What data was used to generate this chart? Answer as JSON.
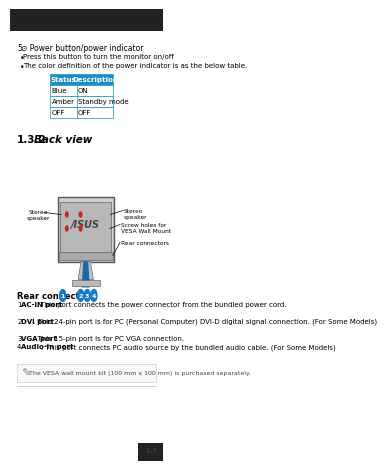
{
  "bg_color": "#ffffff",
  "title_text": "Power button/power indicator",
  "bullet1": "Press this button to turn the monitor on/off",
  "bullet2": "The color definition of the power indicator is as the below table.",
  "table_header": [
    "Status",
    "Description"
  ],
  "table_rows": [
    [
      "Blue",
      "ON"
    ],
    [
      "Amber",
      "Standby mode"
    ],
    [
      "OFF",
      "OFF"
    ]
  ],
  "table_header_bg": "#1a8fc1",
  "table_header_fg": "#ffffff",
  "table_border": "#1a8fc1",
  "section_num": "1.3.2",
  "section_title": "Back view",
  "rear_connectors_title": "Rear connectors",
  "items": [
    [
      "AC-IN port",
      ". This port connects the power connector from the bundled power cord."
    ],
    [
      "DVI port",
      ". This 24-pin port is for PC (Personal Computer) DVI-D digital signal connection. (For Some Models)"
    ],
    [
      "VGA port",
      ". This 15-pin port is for PC VGA connection."
    ],
    [
      "Audio-in port",
      ". This port connects PC audio source by the bundled audio cable. (For Some Models)"
    ]
  ],
  "note_text": "The VESA wall mount kit (100 mm x 100 mm) is purchased separately.",
  "page_num": "1-3",
  "monitor_blue": "#1a6aaa",
  "dot_blue": "#1a7cc4",
  "dot_red": "#cc2222"
}
